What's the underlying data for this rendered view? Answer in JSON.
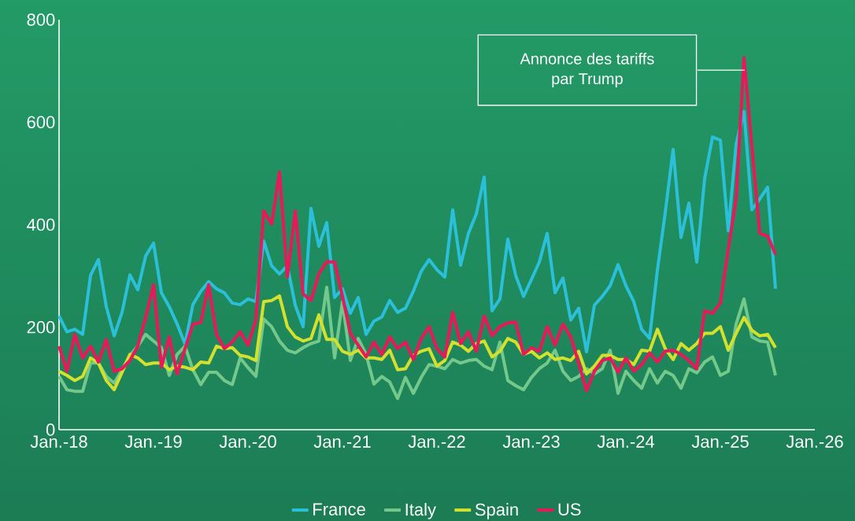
{
  "chart_data": {
    "type": "line",
    "x": [
      "2018-01",
      "2018-02",
      "2018-03",
      "2018-04",
      "2018-05",
      "2018-06",
      "2018-07",
      "2018-08",
      "2018-09",
      "2018-10",
      "2018-11",
      "2018-12",
      "2019-01",
      "2019-02",
      "2019-03",
      "2019-04",
      "2019-05",
      "2019-06",
      "2019-07",
      "2019-08",
      "2019-09",
      "2019-10",
      "2019-11",
      "2019-12",
      "2020-01",
      "2020-02",
      "2020-03",
      "2020-04",
      "2020-05",
      "2020-06",
      "2020-07",
      "2020-08",
      "2020-09",
      "2020-10",
      "2020-11",
      "2020-12",
      "2021-01",
      "2021-02",
      "2021-03",
      "2021-04",
      "2021-05",
      "2021-06",
      "2021-07",
      "2021-08",
      "2021-09",
      "2021-10",
      "2021-11",
      "2021-12",
      "2022-01",
      "2022-02",
      "2022-03",
      "2022-04",
      "2022-05",
      "2022-06",
      "2022-07",
      "2022-08",
      "2022-09",
      "2022-10",
      "2022-11",
      "2022-12",
      "2023-01",
      "2023-02",
      "2023-03",
      "2023-04",
      "2023-05",
      "2023-06",
      "2023-07",
      "2023-08",
      "2023-09",
      "2023-10",
      "2023-11",
      "2023-12",
      "2024-01",
      "2024-02",
      "2024-03",
      "2024-04",
      "2024-05",
      "2024-06",
      "2024-07",
      "2024-08",
      "2024-09",
      "2024-10",
      "2024-11",
      "2024-12",
      "2025-01",
      "2025-02",
      "2025-03",
      "2025-04",
      "2025-05",
      "2025-06",
      "2025-07",
      "2025-08"
    ],
    "series": [
      {
        "name": "France",
        "color": "#2bbfd9",
        "values": [
          222,
          191,
          196,
          186,
          301,
          332,
          240,
          183,
          229,
          302,
          273,
          339,
          364,
          267,
          240,
          206,
          167,
          244,
          270,
          289,
          275,
          267,
          247,
          244,
          255,
          250,
          368,
          320,
          304,
          320,
          243,
          201,
          432,
          358,
          404,
          258,
          275,
          227,
          258,
          186,
          212,
          220,
          252,
          229,
          237,
          270,
          309,
          332,
          312,
          298,
          429,
          321,
          383,
          421,
          493,
          232,
          255,
          372,
          301,
          260,
          293,
          327,
          383,
          267,
          296,
          214,
          237,
          152,
          243,
          260,
          281,
          322,
          281,
          250,
          196,
          178,
          311,
          424,
          547,
          375,
          442,
          327,
          490,
          571,
          565,
          388,
          557,
          621,
          429,
          450,
          473,
          275
        ]
      },
      {
        "name": "Italy",
        "color": "#74c98a",
        "values": [
          104,
          78,
          75,
          75,
          130,
          130,
          104,
          91,
          117,
          145,
          163,
          186,
          173,
          160,
          106,
          147,
          163,
          117,
          88,
          112,
          112,
          96,
          88,
          140,
          121,
          104,
          216,
          201,
          173,
          155,
          150,
          160,
          168,
          173,
          278,
          140,
          250,
          135,
          178,
          147,
          89,
          104,
          93,
          61,
          102,
          71,
          102,
          127,
          124,
          119,
          137,
          130,
          135,
          137,
          124,
          117,
          171,
          96,
          86,
          78,
          102,
          119,
          130,
          155,
          114,
          96,
          104,
          119,
          109,
          119,
          155,
          71,
          114,
          96,
          81,
          119,
          91,
          114,
          106,
          81,
          119,
          111,
          132,
          142,
          106,
          114,
          206,
          255,
          181,
          173,
          171,
          106
        ]
      },
      {
        "name": "Spain",
        "color": "#d4e02e",
        "values": [
          114,
          106,
          96,
          104,
          140,
          130,
          96,
          78,
          112,
          147,
          140,
          127,
          130,
          130,
          117,
          124,
          122,
          117,
          132,
          130,
          163,
          158,
          160,
          145,
          142,
          135,
          250,
          252,
          261,
          201,
          181,
          173,
          178,
          224,
          176,
          176,
          153,
          147,
          155,
          140,
          140,
          137,
          155,
          117,
          119,
          145,
          153,
          158,
          124,
          135,
          171,
          165,
          153,
          168,
          173,
          142,
          153,
          178,
          171,
          147,
          153,
          140,
          150,
          137,
          140,
          135,
          153,
          109,
          124,
          145,
          145,
          137,
          137,
          127,
          155,
          153,
          196,
          158,
          137,
          168,
          155,
          168,
          188,
          188,
          201,
          155,
          188,
          219,
          194,
          183,
          186,
          160
        ]
      },
      {
        "name": "US",
        "color": "#e8195a",
        "values": [
          163,
          114,
          186,
          140,
          163,
          132,
          176,
          114,
          119,
          135,
          163,
          219,
          283,
          122,
          181,
          109,
          158,
          206,
          209,
          283,
          186,
          158,
          171,
          191,
          165,
          214,
          427,
          401,
          503,
          298,
          427,
          265,
          252,
          304,
          328,
          327,
          260,
          188,
          165,
          142,
          171,
          147,
          181,
          158,
          171,
          137,
          178,
          201,
          158,
          142,
          229,
          168,
          191,
          153,
          222,
          183,
          201,
          208,
          210,
          147,
          160,
          153,
          201,
          165,
          206,
          181,
          130,
          76,
          114,
          135,
          140,
          112,
          140,
          114,
          127,
          150,
          132,
          153,
          155,
          147,
          135,
          119,
          232,
          227,
          247,
          352,
          450,
          726,
          552,
          383,
          378,
          342
        ]
      }
    ],
    "xlim": [
      "2018-01",
      "2026-01"
    ],
    "xticks": [
      {
        "value": "2018-01",
        "label": "Jan.-18"
      },
      {
        "value": "2019-01",
        "label": "Jan.-19"
      },
      {
        "value": "2020-01",
        "label": "Jan.-20"
      },
      {
        "value": "2021-01",
        "label": "Jan.-21"
      },
      {
        "value": "2022-01",
        "label": "Jan.-22"
      },
      {
        "value": "2023-01",
        "label": "Jan.-23"
      },
      {
        "value": "2024-01",
        "label": "Jan.-24"
      },
      {
        "value": "2025-01",
        "label": "Jan.-25"
      },
      {
        "value": "2026-01",
        "label": "Jan.-26"
      }
    ],
    "ylim": [
      0,
      800
    ],
    "yticks": [
      0,
      200,
      400,
      600,
      800
    ],
    "legend": "bottom",
    "annotations": [
      "Annonce des tariffs par Trump"
    ]
  }
}
